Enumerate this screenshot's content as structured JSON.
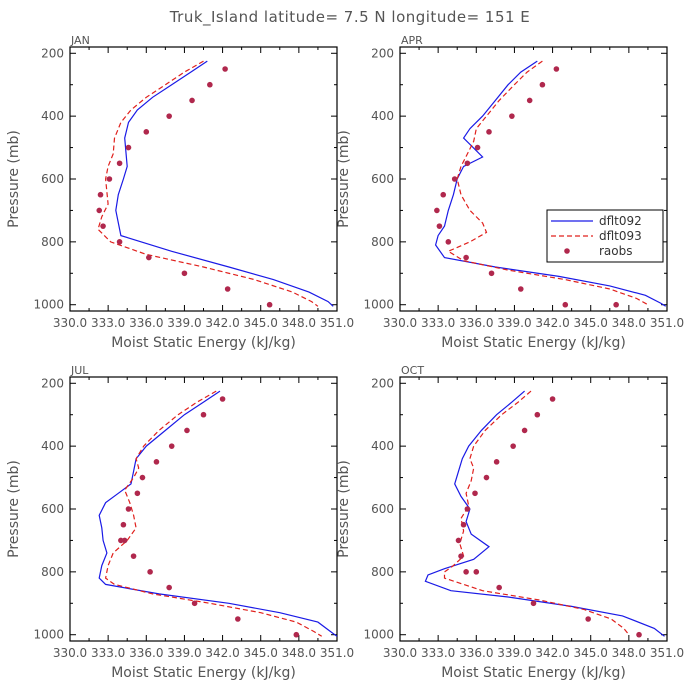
{
  "title": "Truk_Island  latitude= 7.5 N longitude= 151 E",
  "colors": {
    "dflt092": "#1a1ae6",
    "dflt093": "#e0201c",
    "raobs": "#b0284d",
    "axis": "#000000",
    "text": "#555555"
  },
  "chart_data": [
    {
      "type": "line",
      "panel": "JAN",
      "xlabel": "Moist Static Energy (kJ/kg)",
      "ylabel": "Pressure (mb)",
      "xlim": [
        330.0,
        351.0
      ],
      "ylim": [
        1020,
        180
      ],
      "xticks": [
        "330.0",
        "333.0",
        "336.0",
        "339.0",
        "342.0",
        "345.0",
        "348.0",
        "351.0"
      ],
      "yticks": [
        200,
        400,
        600,
        800,
        1000
      ],
      "series": [
        {
          "name": "dflt092",
          "style": "solid",
          "x": [
            340.8,
            339.5,
            338.0,
            336.5,
            335.3,
            334.6,
            334.3,
            334.5,
            334.2,
            333.8,
            333.6,
            334.0,
            338.0,
            342.5,
            346.0,
            348.8,
            350.3,
            350.7
          ],
          "y": [
            225,
            260,
            300,
            340,
            380,
            420,
            470,
            560,
            600,
            650,
            700,
            780,
            830,
            880,
            920,
            960,
            990,
            1005
          ]
        },
        {
          "name": "dflt093",
          "style": "dashed",
          "x": [
            340.5,
            339.0,
            337.5,
            336.0,
            334.8,
            334.0,
            333.5,
            333.4,
            333.0,
            332.8,
            333.0,
            332.5,
            332.2,
            333.2,
            336.0,
            340.5,
            344.5,
            347.5,
            349.0,
            349.5
          ],
          "y": [
            225,
            260,
            300,
            340,
            380,
            420,
            470,
            520,
            560,
            600,
            680,
            720,
            760,
            800,
            840,
            880,
            920,
            960,
            990,
            1005
          ]
        },
        {
          "name": "raobs",
          "style": "dots",
          "x": [
            342.2,
            341.0,
            339.6,
            337.8,
            336.0,
            334.6,
            333.9,
            333.1,
            332.4,
            332.3,
            332.6,
            333.9,
            336.2,
            339.0,
            342.4,
            345.7
          ],
          "y": [
            250,
            300,
            350,
            400,
            450,
            500,
            550,
            600,
            650,
            700,
            750,
            800,
            850,
            900,
            950,
            1000
          ]
        }
      ]
    },
    {
      "type": "line",
      "panel": "APR",
      "xlabel": "Moist Static Energy (kJ/kg)",
      "ylabel": "Pressure (mb)",
      "xlim": [
        330.0,
        351.0
      ],
      "ylim": [
        1020,
        180
      ],
      "xticks": [
        "330.0",
        "333.0",
        "336.0",
        "339.0",
        "342.0",
        "345.0",
        "348.0",
        "351.0"
      ],
      "yticks": [
        200,
        400,
        600,
        800,
        1000
      ],
      "legend": {
        "placement": "right",
        "entries": [
          "dflt092",
          "dflt093",
          "raobs"
        ]
      },
      "series": [
        {
          "name": "dflt092",
          "style": "solid",
          "x": [
            340.8,
            339.5,
            338.5,
            337.5,
            336.5,
            335.5,
            335.0,
            336.5,
            335.0,
            334.5,
            334.2,
            333.8,
            333.5,
            333.0,
            332.8,
            333.5,
            337.5,
            342.5,
            346.5,
            349.3,
            350.5,
            350.9
          ],
          "y": [
            225,
            260,
            300,
            350,
            400,
            440,
            470,
            530,
            560,
            600,
            650,
            700,
            750,
            780,
            810,
            850,
            880,
            910,
            940,
            970,
            995,
            1005
          ]
        },
        {
          "name": "dflt093",
          "style": "dashed",
          "x": [
            341.2,
            340.0,
            339.0,
            337.8,
            336.8,
            336.0,
            335.8,
            335.3,
            334.8,
            334.5,
            334.8,
            335.5,
            336.5,
            336.8,
            335.5,
            333.8,
            335.0,
            338.5,
            343.0,
            346.5,
            348.6,
            349.5
          ],
          "y": [
            225,
            260,
            300,
            350,
            400,
            440,
            480,
            520,
            560,
            600,
            650,
            700,
            740,
            770,
            800,
            830,
            860,
            890,
            920,
            950,
            980,
            1000
          ]
        },
        {
          "name": "raobs",
          "style": "dots",
          "x": [
            342.3,
            341.2,
            340.2,
            338.8,
            337.0,
            336.1,
            335.3,
            334.3,
            333.4,
            332.9,
            333.1,
            333.8,
            335.2,
            337.2,
            339.5,
            343.0,
            347.0
          ],
          "y": [
            250,
            300,
            350,
            400,
            450,
            500,
            550,
            600,
            650,
            700,
            750,
            800,
            850,
            900,
            950,
            1000,
            1000
          ]
        }
      ]
    },
    {
      "type": "line",
      "panel": "JUL",
      "xlabel": "Moist Static Energy (kJ/kg)",
      "ylabel": "Pressure (mb)",
      "xlim": [
        330.0,
        351.0
      ],
      "ylim": [
        1020,
        180
      ],
      "xticks": [
        "330.0",
        "333.0",
        "336.0",
        "339.0",
        "342.0",
        "345.0",
        "348.0",
        "351.0"
      ],
      "yticks": [
        200,
        400,
        600,
        800,
        1000
      ],
      "series": [
        {
          "name": "dflt092",
          "style": "solid",
          "x": [
            341.8,
            340.5,
            339.0,
            337.5,
            336.0,
            335.2,
            335.0,
            334.8,
            333.8,
            332.8,
            332.3,
            332.5,
            332.6,
            332.9,
            332.5,
            332.3,
            332.8,
            337.0,
            342.5,
            346.5,
            349.5,
            350.5,
            351.0
          ],
          "y": [
            225,
            260,
            300,
            350,
            400,
            440,
            480,
            520,
            550,
            580,
            620,
            660,
            700,
            740,
            780,
            820,
            840,
            870,
            900,
            930,
            960,
            990,
            1005
          ]
        },
        {
          "name": "dflt093",
          "style": "dashed",
          "x": [
            341.5,
            340.0,
            338.5,
            337.0,
            335.8,
            335.2,
            335.4,
            335.0,
            334.3,
            334.7,
            335.0,
            335.2,
            334.5,
            333.4,
            333.0,
            332.8,
            333.5,
            336.5,
            341.0,
            345.0,
            347.8,
            349.2,
            349.8
          ],
          "y": [
            225,
            260,
            300,
            350,
            400,
            440,
            470,
            500,
            540,
            580,
            620,
            660,
            700,
            740,
            780,
            820,
            840,
            870,
            900,
            930,
            960,
            990,
            1005
          ]
        },
        {
          "name": "raobs",
          "style": "dots",
          "x": [
            342.0,
            340.5,
            339.2,
            338.0,
            336.8,
            335.7,
            335.3,
            334.6,
            334.2,
            334.0,
            334.3,
            335.0,
            336.3,
            337.8,
            339.8,
            343.2,
            347.8
          ],
          "y": [
            250,
            300,
            350,
            400,
            450,
            500,
            550,
            600,
            650,
            700,
            700,
            750,
            800,
            850,
            900,
            950,
            1000
          ]
        }
      ]
    },
    {
      "type": "line",
      "panel": "OCT",
      "xlabel": "Moist Static Energy (kJ/kg)",
      "ylabel": "Pressure (mb)",
      "xlim": [
        330.0,
        351.0
      ],
      "ylim": [
        1020,
        180
      ],
      "xticks": [
        "330.0",
        "333.0",
        "336.0",
        "339.0",
        "342.0",
        "345.0",
        "348.0",
        "351.0"
      ],
      "yticks": [
        200,
        400,
        600,
        800,
        1000
      ],
      "series": [
        {
          "name": "dflt092",
          "style": "solid",
          "x": [
            339.8,
            338.8,
            337.6,
            336.4,
            335.4,
            334.9,
            334.6,
            334.3,
            334.8,
            335.5,
            335.2,
            335.6,
            337.0,
            335.8,
            333.5,
            332.2,
            332.0,
            334.0,
            338.5,
            343.5,
            347.5,
            350.0,
            350.8
          ],
          "y": [
            225,
            260,
            300,
            350,
            400,
            440,
            480,
            520,
            560,
            600,
            640,
            680,
            720,
            760,
            790,
            810,
            830,
            860,
            880,
            910,
            940,
            980,
            1005
          ]
        },
        {
          "name": "dflt093",
          "style": "dashed",
          "x": [
            340.3,
            339.3,
            338.0,
            336.7,
            335.8,
            335.5,
            335.8,
            335.6,
            335.2,
            335.4,
            334.8,
            335.0,
            334.7,
            335.0,
            334.2,
            333.5,
            333.5,
            336.5,
            341.0,
            344.5,
            346.6,
            347.6,
            348.0
          ],
          "y": [
            225,
            260,
            300,
            350,
            400,
            440,
            470,
            510,
            550,
            590,
            630,
            670,
            710,
            750,
            780,
            800,
            820,
            860,
            890,
            920,
            950,
            980,
            1000
          ]
        },
        {
          "name": "raobs",
          "style": "dots",
          "x": [
            342.0,
            340.8,
            339.8,
            338.9,
            337.6,
            336.8,
            335.9,
            335.3,
            335.0,
            334.6,
            334.8,
            335.2,
            336.0,
            337.8,
            340.5,
            344.8,
            348.8
          ],
          "y": [
            250,
            300,
            350,
            400,
            450,
            500,
            550,
            600,
            650,
            700,
            750,
            800,
            800,
            850,
            900,
            950,
            1000
          ]
        }
      ]
    }
  ]
}
